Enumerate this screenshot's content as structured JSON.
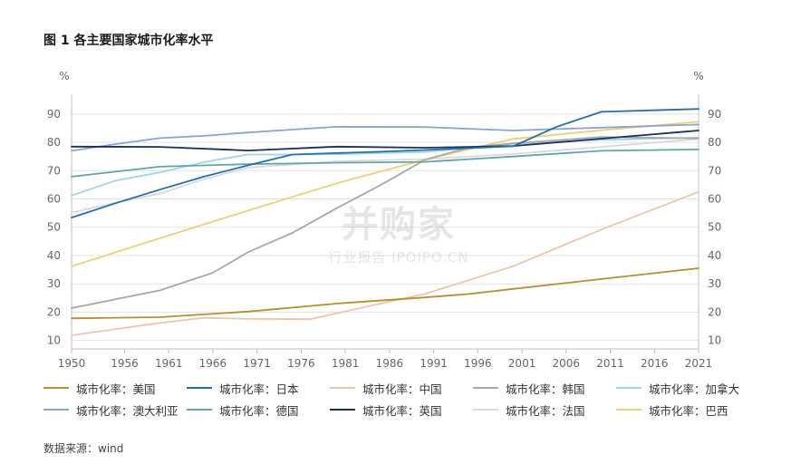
{
  "title": "图 1 各主要国家城市化率水平",
  "source": "数据来源：wind",
  "watermark": {
    "main": "并购家",
    "sub": "行业报告 IPOIPO.CN"
  },
  "chart_data": {
    "type": "line",
    "title": "图 1 各主要国家城市化率水平",
    "ylabel_left": "%",
    "ylabel_right": "%",
    "xlim": [
      1950,
      2021
    ],
    "ylim": [
      7,
      97
    ],
    "x_ticks": [
      1950,
      1956,
      1961,
      1966,
      1971,
      1976,
      1981,
      1986,
      1991,
      1996,
      2001,
      2006,
      2011,
      2016,
      2021
    ],
    "y_ticks": [
      10,
      20,
      30,
      40,
      50,
      60,
      70,
      80,
      90
    ],
    "grid": "horizontal",
    "legend_position": "bottom",
    "series": [
      {
        "name": "城市化率：美国",
        "color": "#b8902a",
        "x": [
          1950,
          1960,
          1970,
          1980,
          1990,
          1995,
          2000,
          2010,
          2021
        ],
        "y": [
          17.8,
          18.2,
          20.2,
          23.0,
          25.2,
          26.4,
          28.2,
          31.7,
          35.5
        ]
      },
      {
        "name": "城市化率：日本",
        "color": "#1f6fb2",
        "x": [
          1950,
          1955,
          1960,
          1965,
          1970,
          1975,
          1980,
          1985,
          1990,
          2000,
          2005,
          2010,
          2021
        ],
        "y": [
          53.4,
          58.5,
          63.3,
          67.9,
          71.9,
          75.7,
          76.2,
          76.7,
          77.3,
          78.6,
          85.6,
          90.8,
          91.8
        ]
      },
      {
        "name": "城市化率：中国",
        "color": "#f0c4a8",
        "x": [
          1950,
          1960,
          1965,
          1970,
          1977,
          1985,
          1990,
          2000,
          2010,
          2021
        ],
        "y": [
          11.8,
          16.2,
          18.0,
          17.6,
          17.5,
          23.0,
          26.4,
          36.2,
          49.2,
          62.5
        ]
      },
      {
        "name": "城市化率：韩国",
        "color": "#a8a8a8",
        "x": [
          1950,
          1960,
          1966,
          1970,
          1975,
          1980,
          1985,
          1990,
          1995,
          2000,
          2010,
          2021
        ],
        "y": [
          21.4,
          27.7,
          33.9,
          41.2,
          48.0,
          56.7,
          64.9,
          73.8,
          78.2,
          79.6,
          81.9,
          81.4
        ]
      },
      {
        "name": "城市化率：加拿大",
        "color": "#9fd4e6",
        "x": [
          1950,
          1955,
          1960,
          1965,
          1970,
          1975,
          1980,
          1990,
          2000,
          2010,
          2021
        ],
        "y": [
          61.2,
          66.5,
          69.4,
          73.0,
          75.7,
          75.7,
          75.8,
          76.6,
          79.5,
          80.9,
          81.7
        ]
      },
      {
        "name": "城市化率：澳大利亚",
        "color": "#8aa3d6",
        "x": [
          1950,
          1955,
          1960,
          1965,
          1970,
          1975,
          1980,
          1990,
          2000,
          2010,
          2021
        ],
        "y": [
          77.0,
          79.4,
          81.5,
          82.3,
          83.5,
          84.5,
          85.5,
          85.4,
          84.2,
          85.2,
          86.3
        ]
      },
      {
        "name": "城市化率：德国",
        "color": "#5fa6a8",
        "x": [
          1950,
          1960,
          1970,
          1980,
          1990,
          2000,
          2010,
          2021
        ],
        "y": [
          67.9,
          71.4,
          72.3,
          72.8,
          73.1,
          75.0,
          77.0,
          77.5
        ]
      },
      {
        "name": "城市化率：英国",
        "color": "#1b2f5e",
        "x": [
          1950,
          1960,
          1970,
          1980,
          1990,
          2000,
          2010,
          2021
        ],
        "y": [
          78.5,
          78.4,
          77.1,
          78.5,
          78.1,
          78.7,
          81.3,
          84.2
        ]
      },
      {
        "name": "城市化率：法国",
        "color": "#d9d9d9",
        "x": [
          1950,
          1955,
          1960,
          1965,
          1970,
          1980,
          1990,
          2000,
          2010,
          2021
        ],
        "y": [
          55.2,
          58.7,
          61.9,
          67.0,
          71.1,
          73.3,
          74.1,
          75.9,
          78.4,
          81.2
        ]
      },
      {
        "name": "城市化率：巴西",
        "color": "#f0cf6e",
        "x": [
          1950,
          1960,
          1970,
          1980,
          1990,
          2000,
          2010,
          2021
        ],
        "y": [
          36.2,
          46.1,
          55.9,
          65.5,
          73.9,
          81.2,
          84.3,
          87.3
        ]
      }
    ]
  }
}
